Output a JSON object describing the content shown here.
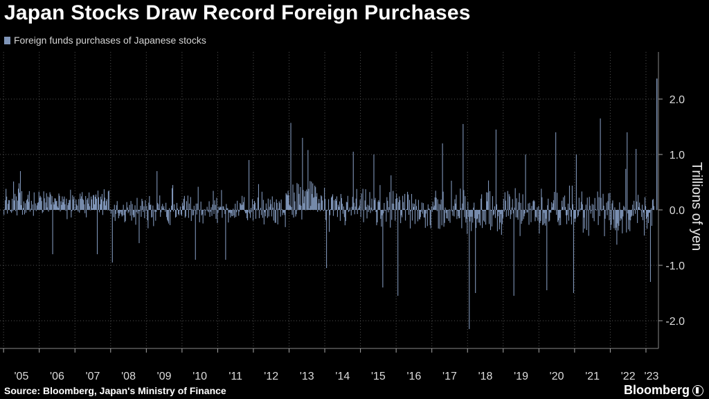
{
  "header": {
    "title": "Japan Stocks Draw Record Foreign Purchases"
  },
  "footer": {
    "source": "Source: Bloomberg, Japan's Ministry of Finance",
    "brand": "Bloomberg"
  },
  "colors": {
    "background": "#000000",
    "bar": "#7f95b8",
    "grid": "#555555"
  },
  "chart_data": {
    "type": "bar",
    "title": "Japan Stocks Draw Record Foreign Purchases",
    "ylabel": "Trillions of yen",
    "xlabel": "",
    "legend_placement": "top-left",
    "grid": "dotted vertical and horizontal",
    "ylim": [
      -2.5,
      2.85
    ],
    "yticks": [
      2.0,
      1.0,
      0.0,
      -1.0,
      -2.0
    ],
    "ytick_labels": [
      "2.0",
      "1.0",
      "0.0",
      "-1.0",
      "-2.0"
    ],
    "xlim": [
      "2005-01",
      "2023-04"
    ],
    "xtick_labels": [
      "'05",
      "'06",
      "'07",
      "'08",
      "'09",
      "'10",
      "'11",
      "'12",
      "'13",
      "'14",
      "'15",
      "'16",
      "'17",
      "'18",
      "'19",
      "'20",
      "'21",
      "'22",
      "'23"
    ],
    "bar_frequency": "weekly",
    "series": [
      {
        "name": "Foreign funds purchases of Japanese stocks",
        "peaks": [
          {
            "date": "2005-06",
            "value": 0.7
          },
          {
            "date": "2006-05",
            "value": -0.8
          },
          {
            "date": "2007-08",
            "value": -0.8
          },
          {
            "date": "2008-01",
            "value": -0.95
          },
          {
            "date": "2008-10",
            "value": -0.6
          },
          {
            "date": "2009-04",
            "value": 0.7
          },
          {
            "date": "2010-05",
            "value": -0.9
          },
          {
            "date": "2011-03",
            "value": -0.9
          },
          {
            "date": "2011-11",
            "value": 0.9
          },
          {
            "date": "2013-01",
            "value": 1.57
          },
          {
            "date": "2013-05",
            "value": 1.3
          },
          {
            "date": "2014-01",
            "value": -1.05
          },
          {
            "date": "2014-10",
            "value": 1.05
          },
          {
            "date": "2015-05",
            "value": 1.0
          },
          {
            "date": "2015-08",
            "value": -1.4
          },
          {
            "date": "2016-01",
            "value": -1.55
          },
          {
            "date": "2017-04",
            "value": 1.2
          },
          {
            "date": "2017-11",
            "value": 1.55
          },
          {
            "date": "2018-01",
            "value": -2.15
          },
          {
            "date": "2018-03",
            "value": -1.5
          },
          {
            "date": "2018-10",
            "value": 1.45
          },
          {
            "date": "2019-04",
            "value": -1.55
          },
          {
            "date": "2019-08",
            "value": 1.0
          },
          {
            "date": "2020-03",
            "value": -1.45
          },
          {
            "date": "2020-06",
            "value": 1.4
          },
          {
            "date": "2020-12",
            "value": -1.5
          },
          {
            "date": "2021-01",
            "value": 1.0
          },
          {
            "date": "2021-09",
            "value": 1.65
          },
          {
            "date": "2022-06",
            "value": 1.4
          },
          {
            "date": "2022-09",
            "value": 1.1
          },
          {
            "date": "2023-02",
            "value": -1.3
          },
          {
            "date": "2023-04",
            "value": 2.37
          }
        ]
      }
    ]
  }
}
